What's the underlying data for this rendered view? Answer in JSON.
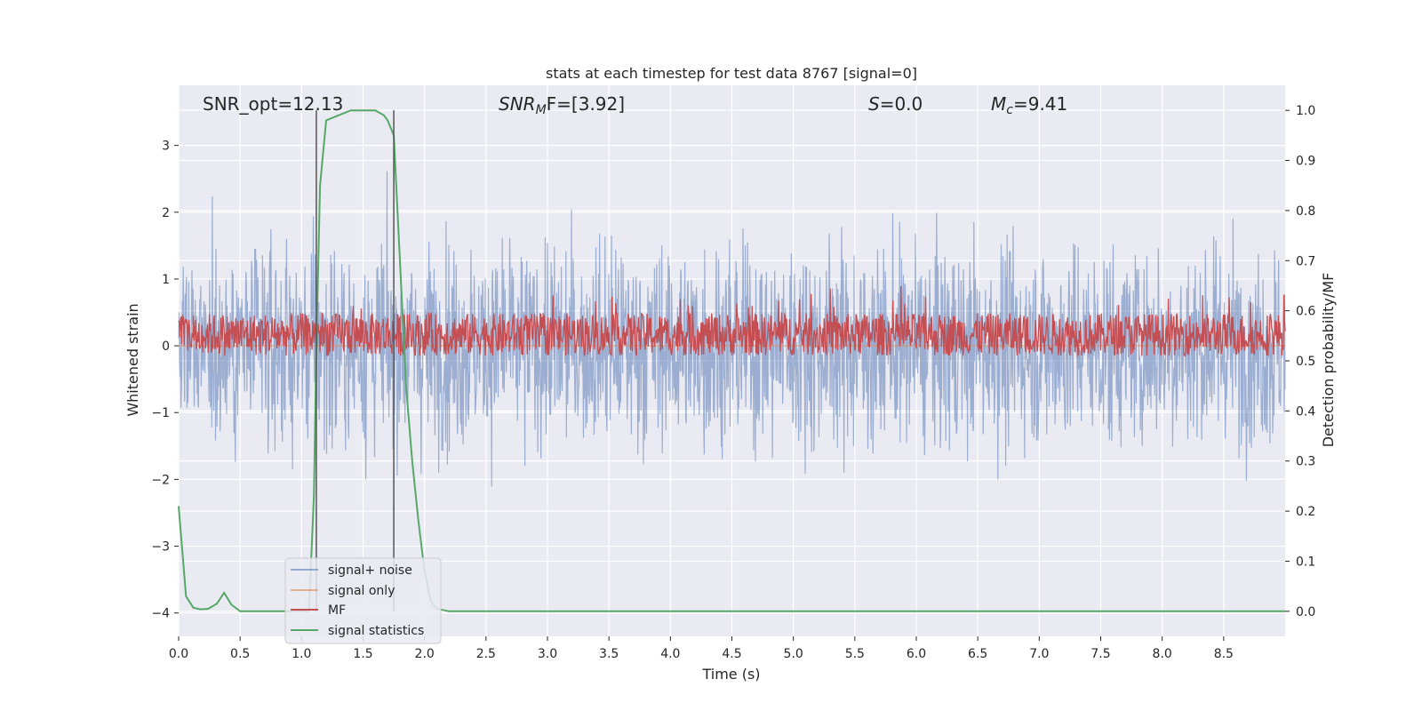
{
  "chart_data": {
    "type": "line",
    "title": "stats at each timestep for test data 8767 [signal=0]",
    "xlabel": "Time (s)",
    "ylabel_left": "Whitened strain",
    "ylabel_right": "Detection probability/MF",
    "xlim": [
      0.0,
      9.0
    ],
    "ylim_left": [
      -4.35,
      3.9
    ],
    "ylim_right": [
      -0.05,
      1.05
    ],
    "x_ticks": [
      "0.0",
      "0.5",
      "1.0",
      "1.5",
      "2.0",
      "2.5",
      "3.0",
      "3.5",
      "4.0",
      "4.5",
      "5.0",
      "5.5",
      "6.0",
      "6.5",
      "7.0",
      "7.5",
      "8.0",
      "8.5"
    ],
    "y_ticks_left": [
      "3",
      "2",
      "1",
      "0",
      "−1",
      "−2",
      "−3",
      "−4"
    ],
    "y_ticks_right": [
      "1.0",
      "0.9",
      "0.8",
      "0.7",
      "0.6",
      "0.5",
      "0.4",
      "0.3",
      "0.2",
      "0.1",
      "0.0"
    ],
    "grid": true,
    "legend_placement": "lower-left",
    "colors": {
      "signal_noise": "#4c72b0",
      "signal_only": "#dd8452",
      "mf": "#c44e52",
      "signal_statistics": "#55a868",
      "vline": "#555555",
      "background": "#eaeaf2"
    },
    "annotations": {
      "snr_opt": "SNR_opt=12.13",
      "snr_mf_prefix": "SNR",
      "snr_mf_sub": "M",
      "snr_mf_suffix": "F=[3.92]",
      "s_prefix": "S",
      "s_value": "=0.0",
      "mc_prefix": "M",
      "mc_sub": "c",
      "mc_value": "=9.41"
    },
    "vertical_lines_x": [
      1.12,
      1.75
    ],
    "series": [
      {
        "name": "signal+ noise",
        "axis": "left",
        "description_range": [
          -3.6,
          3.6
        ]
      },
      {
        "name": "signal only",
        "axis": "left",
        "values_x": [
          0.0,
          9.0
        ],
        "values_y": [
          0.0,
          0.0
        ]
      },
      {
        "name": "MF",
        "axis": "right",
        "baseline": 0.51,
        "peak_max": 0.66
      },
      {
        "name": "signal statistics",
        "axis": "right",
        "x": [
          0.0,
          0.06,
          0.12,
          0.18,
          0.24,
          0.31,
          0.37,
          0.43,
          0.5,
          1.0,
          1.06,
          1.1,
          1.12,
          1.15,
          1.2,
          1.3,
          1.4,
          1.5,
          1.6,
          1.67,
          1.7,
          1.75,
          1.8,
          1.85,
          1.9,
          1.95,
          2.0,
          2.05,
          2.1,
          2.2,
          3.0,
          4.0,
          5.0,
          6.0,
          7.0,
          8.0,
          9.0
        ],
        "y": [
          0.21,
          0.03,
          0.007,
          0.004,
          0.005,
          0.015,
          0.037,
          0.013,
          0.0,
          0.0,
          0.0,
          0.23,
          0.52,
          0.85,
          0.98,
          0.99,
          1.0,
          1.0,
          1.0,
          0.99,
          0.98,
          0.95,
          0.7,
          0.45,
          0.3,
          0.18,
          0.08,
          0.02,
          0.005,
          0.0,
          0.0,
          0.0,
          0.0,
          0.0,
          0.0,
          0.0,
          0.0
        ]
      }
    ]
  }
}
